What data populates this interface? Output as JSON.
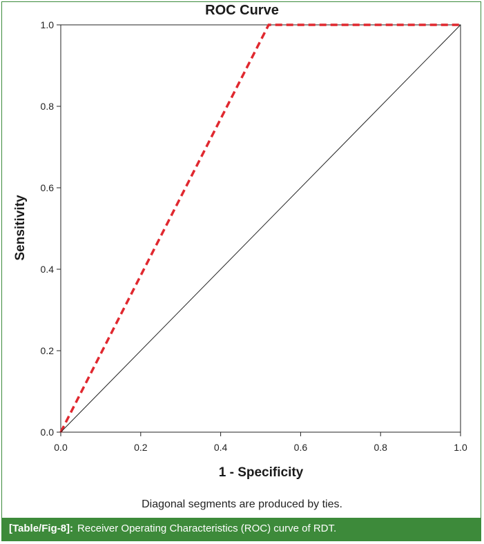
{
  "chart_data": {
    "type": "line",
    "title": "ROC Curve",
    "xlabel": "1 - Specificity",
    "ylabel": "Sensitivity",
    "xlim": [
      0,
      1
    ],
    "ylim": [
      0,
      1
    ],
    "xticks": [
      "0.0",
      "0.2",
      "0.4",
      "0.6",
      "0.8",
      "1.0"
    ],
    "yticks": [
      "0.0",
      "0.2",
      "0.4",
      "0.6",
      "0.8",
      "1.0"
    ],
    "grid": false,
    "series": [
      {
        "style": "dashed",
        "color": "#e0282f",
        "x": [
          0,
          0.52,
          1
        ],
        "y": [
          0,
          1,
          1
        ]
      },
      {
        "style": "solid",
        "color": "#222222",
        "x": [
          0,
          1
        ],
        "y": [
          0,
          1
        ]
      }
    ],
    "annotation": "Diagonal segments are produced by ties."
  },
  "caption": {
    "tag": "[Table/Fig-8]:",
    "text": "Receiver Operating Characteristics (ROC) curve of RDT."
  }
}
